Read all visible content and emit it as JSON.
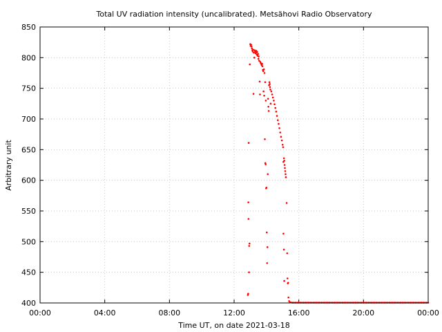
{
  "chart_data": {
    "type": "scatter",
    "title": "Total UV radiation intensity (uncalibrated). Metsähovi Radio Observatory",
    "xlabel": "Time UT, on date 2021-03-18",
    "ylabel": "Arbitrary unit",
    "xlim": [
      0,
      24
    ],
    "ylim": [
      400,
      850
    ],
    "x_ticks": [
      0,
      4,
      8,
      12,
      16,
      20,
      24
    ],
    "x_tick_labels": [
      "00:00",
      "04:00",
      "08:00",
      "12:00",
      "16:00",
      "20:00",
      "00:00"
    ],
    "y_ticks": [
      400,
      450,
      500,
      550,
      600,
      650,
      700,
      750,
      800,
      850
    ],
    "y_tick_labels": [
      "400",
      "450",
      "500",
      "550",
      "600",
      "650",
      "700",
      "750",
      "800",
      "850"
    ],
    "grid": true,
    "marker_color": "#ff0000",
    "series": [
      {
        "points": [
          [
            12.85,
            413
          ],
          [
            12.87,
            415
          ],
          [
            12.88,
            564
          ],
          [
            12.89,
            537
          ],
          [
            12.9,
            661
          ],
          [
            12.92,
            450
          ],
          [
            12.93,
            493
          ],
          [
            12.95,
            497
          ],
          [
            12.97,
            789
          ],
          [
            13.0,
            822
          ],
          [
            13.02,
            819
          ],
          [
            13.05,
            821
          ],
          [
            13.08,
            818
          ],
          [
            13.1,
            815
          ],
          [
            13.13,
            812
          ],
          [
            13.15,
            810
          ],
          [
            13.18,
            813
          ],
          [
            13.2,
            741
          ],
          [
            13.22,
            808
          ],
          [
            13.25,
            800
          ],
          [
            13.28,
            812
          ],
          [
            13.3,
            810
          ],
          [
            13.33,
            807
          ],
          [
            13.35,
            808
          ],
          [
            13.38,
            811
          ],
          [
            13.4,
            805
          ],
          [
            13.43,
            809
          ],
          [
            13.45,
            803
          ],
          [
            13.48,
            806
          ],
          [
            13.5,
            798
          ],
          [
            13.52,
            802
          ],
          [
            13.55,
            795
          ],
          [
            13.58,
            761
          ],
          [
            13.6,
            740
          ],
          [
            13.62,
            793
          ],
          [
            13.65,
            791
          ],
          [
            13.68,
            790
          ],
          [
            13.7,
            788
          ],
          [
            13.73,
            790
          ],
          [
            13.75,
            786
          ],
          [
            13.78,
            780
          ],
          [
            13.8,
            778
          ],
          [
            13.82,
            745
          ],
          [
            13.84,
            781
          ],
          [
            13.86,
            738
          ],
          [
            13.88,
            775
          ],
          [
            13.9,
            667
          ],
          [
            13.92,
            760
          ],
          [
            13.93,
            628
          ],
          [
            13.95,
            626
          ],
          [
            13.96,
            730
          ],
          [
            13.98,
            587
          ],
          [
            14.0,
            588
          ],
          [
            14.02,
            515
          ],
          [
            14.04,
            465
          ],
          [
            14.06,
            491
          ],
          [
            14.08,
            610
          ],
          [
            14.1,
            733
          ],
          [
            14.12,
            720
          ],
          [
            14.14,
            713
          ],
          [
            14.16,
            755
          ],
          [
            14.18,
            760
          ],
          [
            14.2,
            757
          ],
          [
            14.22,
            752
          ],
          [
            14.24,
            748
          ],
          [
            14.26,
            725
          ],
          [
            14.3,
            745
          ],
          [
            14.35,
            740
          ],
          [
            14.4,
            735
          ],
          [
            14.45,
            730
          ],
          [
            14.5,
            724
          ],
          [
            14.55,
            718
          ],
          [
            14.6,
            712
          ],
          [
            14.65,
            705
          ],
          [
            14.7,
            698
          ],
          [
            14.75,
            692
          ],
          [
            14.8,
            685
          ],
          [
            14.85,
            678
          ],
          [
            14.9,
            671
          ],
          [
            14.95,
            665
          ],
          [
            15.0,
            658
          ],
          [
            15.03,
            654
          ],
          [
            15.05,
            630
          ],
          [
            15.08,
            636
          ],
          [
            15.1,
            632
          ],
          [
            15.12,
            625
          ],
          [
            15.14,
            620
          ],
          [
            15.16,
            615
          ],
          [
            15.18,
            610
          ],
          [
            15.2,
            605
          ],
          [
            15.05,
            513
          ],
          [
            15.08,
            487
          ],
          [
            15.1,
            436
          ],
          [
            15.25,
            563
          ],
          [
            15.28,
            481
          ],
          [
            15.3,
            440
          ],
          [
            15.32,
            432
          ],
          [
            15.34,
            433
          ],
          [
            15.36,
            409
          ],
          [
            15.4,
            403
          ],
          [
            15.45,
            401
          ],
          [
            15.5,
            401
          ],
          [
            15.6,
            400.5
          ],
          [
            15.7,
            400.5
          ],
          [
            15.8,
            400.5
          ],
          [
            15.9,
            400.5
          ],
          [
            16.0,
            400.5
          ],
          [
            16.1,
            400.5
          ],
          [
            16.2,
            400.5
          ],
          [
            16.3,
            400.5
          ],
          [
            16.4,
            400.5
          ],
          [
            16.5,
            400.5
          ],
          [
            16.6,
            400.5
          ],
          [
            16.7,
            400.5
          ],
          [
            16.8,
            400.5
          ],
          [
            16.9,
            400.5
          ],
          [
            17.0,
            400.5
          ],
          [
            17.1,
            400.5
          ],
          [
            17.2,
            400.5
          ],
          [
            17.3,
            400.5
          ],
          [
            17.4,
            400.5
          ],
          [
            17.5,
            400.5
          ],
          [
            17.6,
            400.5
          ],
          [
            17.7,
            400.5
          ],
          [
            17.8,
            400.5
          ],
          [
            17.9,
            400.5
          ],
          [
            18.0,
            400.5
          ],
          [
            18.1,
            400.5
          ],
          [
            18.2,
            400.5
          ],
          [
            18.3,
            400.5
          ],
          [
            18.4,
            400.5
          ],
          [
            18.5,
            400.5
          ],
          [
            18.6,
            400.5
          ],
          [
            18.7,
            400.5
          ],
          [
            18.8,
            400.5
          ],
          [
            18.9,
            400.5
          ],
          [
            19.0,
            400.5
          ],
          [
            19.1,
            400.5
          ],
          [
            19.2,
            400.5
          ],
          [
            19.3,
            400.5
          ],
          [
            19.4,
            400.5
          ],
          [
            19.5,
            400.5
          ],
          [
            19.6,
            400.5
          ],
          [
            19.7,
            400.5
          ],
          [
            19.8,
            400.5
          ],
          [
            19.9,
            400.5
          ],
          [
            20.0,
            400.5
          ],
          [
            20.1,
            400.5
          ],
          [
            20.2,
            400.5
          ],
          [
            20.3,
            400.5
          ],
          [
            20.4,
            400.5
          ],
          [
            20.5,
            400.5
          ],
          [
            20.6,
            400.5
          ],
          [
            20.7,
            400.5
          ],
          [
            20.8,
            400.5
          ],
          [
            20.9,
            400.5
          ],
          [
            21.0,
            400.5
          ],
          [
            21.1,
            400.5
          ],
          [
            21.2,
            400.5
          ],
          [
            21.3,
            400.5
          ],
          [
            21.4,
            400.5
          ],
          [
            21.5,
            400.5
          ],
          [
            21.6,
            400.5
          ],
          [
            21.7,
            400.5
          ],
          [
            21.8,
            400.5
          ],
          [
            21.9,
            400.5
          ],
          [
            22.0,
            400.5
          ],
          [
            22.1,
            400.5
          ],
          [
            22.2,
            400.5
          ],
          [
            22.3,
            400.5
          ],
          [
            22.4,
            400.5
          ],
          [
            22.5,
            400.5
          ],
          [
            22.6,
            400.5
          ],
          [
            22.7,
            400.5
          ],
          [
            22.8,
            400.5
          ],
          [
            22.9,
            400.5
          ],
          [
            23.0,
            400.5
          ],
          [
            23.1,
            400.5
          ],
          [
            23.2,
            400.5
          ],
          [
            23.3,
            400.5
          ],
          [
            23.4,
            400.5
          ],
          [
            23.5,
            400.5
          ],
          [
            23.6,
            400.5
          ],
          [
            23.7,
            400.5
          ],
          [
            23.8,
            400.5
          ],
          [
            23.9,
            400.5
          ],
          [
            24.0,
            400.5
          ]
        ]
      }
    ]
  }
}
